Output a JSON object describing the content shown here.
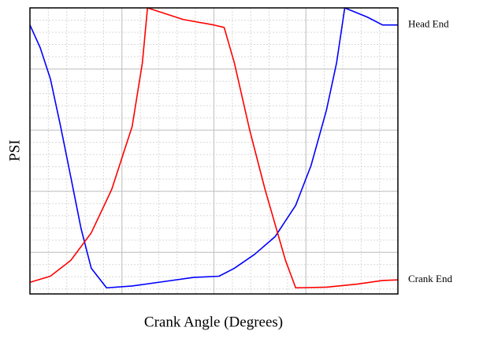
{
  "chart_data": {
    "type": "line",
    "xlabel": "Crank Angle (Degrees)",
    "ylabel": "PSI",
    "xlim": [
      0,
      360
    ],
    "xticks": [
      0,
      90,
      180,
      270,
      360
    ],
    "ylim": [
      -68,
      400
    ],
    "yticks": [
      0,
      100,
      200,
      300,
      400
    ],
    "grid": true,
    "series": [
      {
        "name": "Head End",
        "color": "#0000ff",
        "x": [
          0,
          10,
          20,
          30,
          40,
          50,
          60,
          75,
          100,
          130,
          160,
          185,
          200,
          220,
          240,
          260,
          275,
          290,
          300,
          308,
          330,
          345,
          360
        ],
        "values": [
          372,
          335,
          284,
          206,
          123,
          39,
          -26,
          -58,
          -55,
          -48,
          -41,
          -39,
          -26,
          -3,
          26,
          77,
          142,
          232,
          310,
          400,
          385,
          372,
          372
        ]
      },
      {
        "name": "Crank End",
        "color": "#ff0000",
        "x": [
          0,
          20,
          40,
          60,
          80,
          100,
          110,
          115,
          150,
          180,
          190,
          200,
          215,
          230,
          250,
          260,
          290,
          320,
          345,
          360
        ],
        "values": [
          -49,
          -39,
          -13,
          32,
          103,
          206,
          310,
          400,
          381,
          372,
          368,
          310,
          200,
          103,
          -13,
          -58,
          -57,
          -52,
          -46,
          -45
        ]
      }
    ]
  }
}
